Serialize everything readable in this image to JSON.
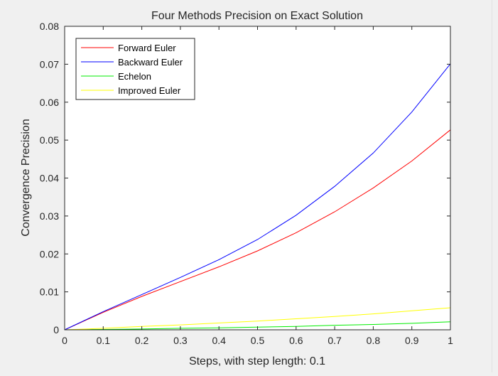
{
  "chart_data": {
    "type": "line",
    "title": "Four Methods Precision on Exact Solution",
    "xlabel": "Steps, with step length: 0.1",
    "ylabel": "Convergence Precision",
    "xlim": [
      0,
      1
    ],
    "ylim": [
      0,
      0.08
    ],
    "xticks": [
      0,
      0.1,
      0.2,
      0.3,
      0.4,
      0.5,
      0.6,
      0.7,
      0.8,
      0.9,
      1
    ],
    "xtick_labels": [
      "0",
      "0.1",
      "0.2",
      "0.3",
      "0.4",
      "0.5",
      "0.6",
      "0.7",
      "0.8",
      "0.9",
      "1"
    ],
    "yticks": [
      0,
      0.01,
      0.02,
      0.03,
      0.04,
      0.05,
      0.06,
      0.07,
      0.08
    ],
    "ytick_labels": [
      "0",
      "0.01",
      "0.02",
      "0.03",
      "0.04",
      "0.05",
      "0.06",
      "0.07",
      "0.08"
    ],
    "grid": false,
    "legend_position": "top-left",
    "x": [
      0,
      0.1,
      0.2,
      0.3,
      0.4,
      0.5,
      0.6,
      0.7,
      0.8,
      0.9,
      1
    ],
    "series": [
      {
        "name": "Forward Euler",
        "color": "#ff0000",
        "values": [
          0,
          0.0046,
          0.0088,
          0.0127,
          0.0166,
          0.0208,
          0.0256,
          0.0311,
          0.0374,
          0.0445,
          0.0527
        ]
      },
      {
        "name": "Backward Euler",
        "color": "#0000ff",
        "values": [
          0,
          0.0048,
          0.0093,
          0.0138,
          0.0185,
          0.0238,
          0.0302,
          0.0378,
          0.0466,
          0.0574,
          0.0701
        ]
      },
      {
        "name": "Echelon",
        "color": "#00ee00",
        "values": [
          0,
          0.0001,
          0.0002,
          0.0004,
          0.0005,
          0.0007,
          0.0009,
          0.0012,
          0.0014,
          0.0017,
          0.0021
        ]
      },
      {
        "name": "Improved Euler",
        "color": "#ffff00",
        "values": [
          0,
          0.0004,
          0.0009,
          0.0013,
          0.0018,
          0.0023,
          0.0029,
          0.0035,
          0.0042,
          0.005,
          0.0058
        ]
      }
    ]
  }
}
